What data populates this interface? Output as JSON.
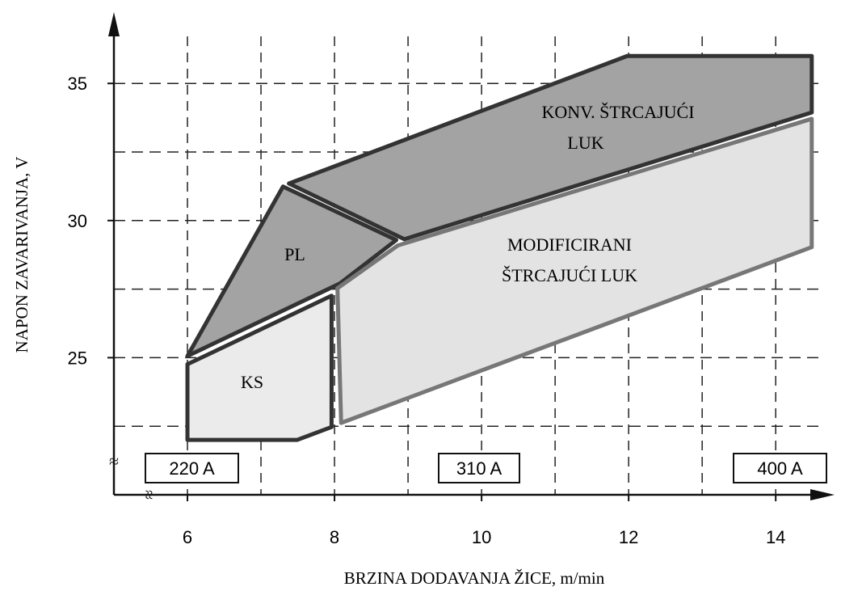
{
  "chart_data": {
    "type": "region",
    "xlabel": "BRZINA DODAVANJA ŽICE, m/min",
    "ylabel": "NAPON ZAVARIVANJA, V",
    "xlim": [
      5,
      14.8
    ],
    "ylim": [
      20,
      37.6
    ],
    "xticks": [
      6,
      8,
      10,
      12,
      14
    ],
    "yticks": [
      25,
      30,
      35
    ],
    "xgrid": [
      6,
      7,
      8,
      9,
      10,
      11,
      12,
      13,
      14
    ],
    "ygrid": [
      22.5,
      25,
      27.5,
      30,
      32.5,
      35
    ],
    "regions": [
      {
        "name": "KONV. ŠTRCAJUĆI",
        "name2": "LUK",
        "color": "#a3a3a3",
        "edge": "#333333",
        "points": [
          [
            7.38,
            31.35
          ],
          [
            11.98,
            36.0
          ],
          [
            14.49,
            36.0
          ],
          [
            14.49,
            33.94
          ],
          [
            8.95,
            29.32
          ]
        ]
      },
      {
        "name": "PL",
        "color": "#a3a3a3",
        "edge": "#333333",
        "points": [
          [
            6,
            25.06
          ],
          [
            7.3,
            31.24
          ],
          [
            8.84,
            29.29
          ],
          [
            8.07,
            27.7
          ]
        ]
      },
      {
        "name": "KS",
        "color": "#ebebeb",
        "edge": "#333333",
        "points": [
          [
            6,
            24.76
          ],
          [
            7.96,
            27.26
          ],
          [
            7.96,
            22.47
          ],
          [
            7.49,
            22.0
          ],
          [
            6,
            22.0
          ]
        ]
      },
      {
        "name": "MODIFICIRANI",
        "name2": "ŠTRCAJUĆI LUK",
        "color": "#e3e3e3",
        "edge": "#777777",
        "points": [
          [
            8.04,
            27.53
          ],
          [
            8.86,
            29.09
          ],
          [
            14.49,
            33.71
          ],
          [
            14.49,
            29.03
          ],
          [
            8.09,
            22.62
          ]
        ]
      }
    ],
    "currents": [
      "220 A",
      "310 A",
      "400 A"
    ]
  }
}
